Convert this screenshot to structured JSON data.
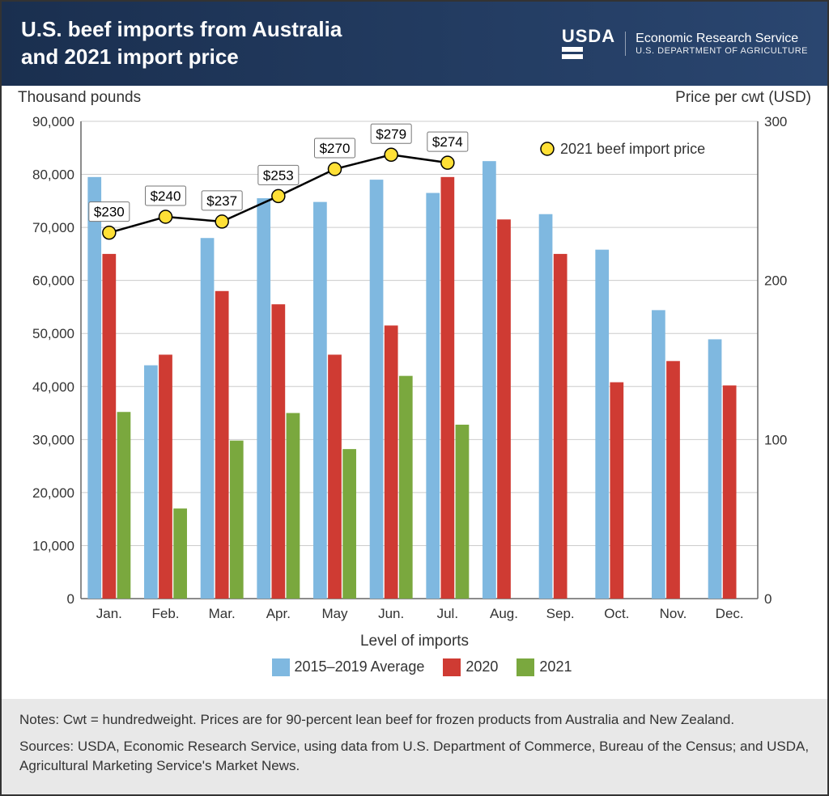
{
  "header": {
    "title_line1": "U.S. beef imports from Australia",
    "title_line2": "and 2021 import price",
    "logo_text": "USDA",
    "logo_sub1": "Economic Research Service",
    "logo_sub2": "U.S. DEPARTMENT OF AGRICULTURE"
  },
  "chart": {
    "type": "bar+line",
    "y_left_title": "Thousand pounds",
    "y_right_title": "Price per cwt (USD)",
    "x_title": "Level of imports",
    "categories": [
      "Jan.",
      "Feb.",
      "Mar.",
      "Apr.",
      "May",
      "Jun.",
      "Jul.",
      "Aug.",
      "Sep.",
      "Oct.",
      "Nov.",
      "Dec."
    ],
    "y_left": {
      "min": 0,
      "max": 90000,
      "step": 10000
    },
    "y_right": {
      "min": 0,
      "max": 300,
      "step": 100
    },
    "series": {
      "avg_2015_2019": {
        "label": "2015–2019 Average",
        "color": "#7fb8e0",
        "values": [
          79500,
          44000,
          68000,
          75500,
          74800,
          79000,
          76500,
          82500,
          72500,
          65800,
          54400,
          48900
        ]
      },
      "y2020": {
        "label": "2020",
        "color": "#cf3b33",
        "values": [
          65000,
          46000,
          58000,
          55500,
          46000,
          51500,
          79500,
          71500,
          65000,
          40800,
          44800,
          40200
        ]
      },
      "y2021": {
        "label": "2021",
        "color": "#7aa83e",
        "values": [
          35200,
          17000,
          29800,
          35000,
          28200,
          42000,
          32800,
          null,
          null,
          null,
          null,
          null
        ]
      }
    },
    "line_series": {
      "label": "2021 beef import price",
      "color_line": "#000000",
      "color_marker_fill": "#ffe036",
      "color_marker_stroke": "#000000",
      "marker_radius": 8,
      "line_width": 2.5,
      "values_usd": [
        230,
        240,
        237,
        253,
        270,
        279,
        274
      ],
      "value_labels": [
        "$230",
        "$240",
        "$237",
        "$253",
        "$270",
        "$279",
        "$274"
      ]
    },
    "grid_color": "#cccccc",
    "background_color": "#ffffff",
    "bar_group_width": 0.78,
    "bar_gap_inner": 0.02,
    "font_size_ticks": 17,
    "font_size_titles": 19
  },
  "legend_line_marker": {
    "label": "2021 beef import price"
  },
  "footer": {
    "notes_label": "Notes:",
    "notes_text": " Cwt = hundredweight. Prices are for 90-percent lean beef for frozen products from Australia and New Zealand.",
    "sources_label": "Sources:",
    "sources_text": " USDA, Economic Research Service, using data from U.S. Department of Commerce, Bureau of the Census; and USDA, Agricultural Marketing Service's Market News."
  }
}
